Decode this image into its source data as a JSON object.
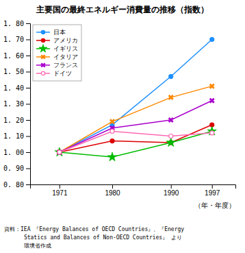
{
  "chart_data": {
    "type": "line",
    "title": "主要国の最終エネルギー消費量の推移（指数）",
    "x_label": "（年・年度）",
    "x": [
      1971,
      1980,
      1990,
      1997
    ],
    "xlim": [
      1966,
      2001
    ],
    "xticks": [
      1971,
      1980,
      1990,
      1997
    ],
    "ylim": [
      0.8,
      1.8
    ],
    "yticks": [
      {
        "value": 0.8,
        "label": "0. 80"
      },
      {
        "value": 0.9,
        "label": "0. 90"
      },
      {
        "value": 1.0,
        "label": "1. 00"
      },
      {
        "value": 1.1,
        "label": "1. 10"
      },
      {
        "value": 1.2,
        "label": "1. 20"
      },
      {
        "value": 1.3,
        "label": "1. 30"
      },
      {
        "value": 1.4,
        "label": "1. 40"
      },
      {
        "value": 1.5,
        "label": "1. 50"
      },
      {
        "value": 1.6,
        "label": "1. 60"
      },
      {
        "value": 1.7,
        "label": "1. 70"
      },
      {
        "value": 1.8,
        "label": "1. 80"
      }
    ],
    "series": [
      {
        "name": "日本",
        "color": "#1e90ff",
        "marker": "circle",
        "values": [
          1.0,
          1.17,
          1.47,
          1.7
        ]
      },
      {
        "name": "アメリカ",
        "color": "#dd0000",
        "marker": "circle",
        "values": [
          1.0,
          1.07,
          1.06,
          1.17
        ]
      },
      {
        "name": "イギリス",
        "color": "#00bb00",
        "marker": "star",
        "values": [
          1.0,
          0.97,
          1.06,
          1.13
        ]
      },
      {
        "name": "イタリア",
        "color": "#ff8800",
        "marker": "x",
        "values": [
          1.0,
          1.19,
          1.34,
          1.41
        ]
      },
      {
        "name": "フランス",
        "color": "#aa00cc",
        "marker": "x",
        "values": [
          1.0,
          1.15,
          1.2,
          1.32
        ]
      },
      {
        "name": "ドイツ",
        "color": "#ff69b4",
        "marker": "circle-open",
        "values": [
          1.0,
          1.13,
          1.1,
          1.12
        ]
      }
    ],
    "legend": "upper left",
    "grid": false,
    "annotations": [
      "資料：IEA 『Energy Balances of OECD Countries』、『Energy",
      "      Statics and Balances of Non-OECD Countries』 より",
      "      環境省作成"
    ]
  }
}
